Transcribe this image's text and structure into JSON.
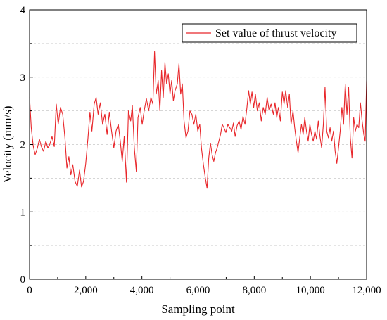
{
  "chart_data": {
    "type": "line",
    "xlabel": "Sampling point",
    "ylabel": "Velocity (mm/s)",
    "xlim": [
      0,
      12000
    ],
    "ylim": [
      0,
      4
    ],
    "x_ticks": [
      0,
      2000,
      4000,
      6000,
      8000,
      10000,
      12000
    ],
    "x_tick_labels": [
      "0",
      "2,000",
      "4,000",
      "6,000",
      "8,000",
      "10,000",
      "12,000"
    ],
    "y_ticks": [
      0,
      1,
      2,
      3,
      4
    ],
    "y_tick_labels": [
      "0",
      "1",
      "2",
      "3",
      "4"
    ],
    "grid": "horizontal dashed at 0.5 steps",
    "legend_position": "top-right",
    "series": [
      {
        "name": "Set value of thrust velocity",
        "color": "#e8262a",
        "points": [
          [
            0,
            2.7
          ],
          [
            60,
            2.25
          ],
          [
            130,
            1.98
          ],
          [
            200,
            1.85
          ],
          [
            280,
            1.95
          ],
          [
            350,
            2.08
          ],
          [
            420,
            1.97
          ],
          [
            500,
            1.9
          ],
          [
            580,
            2.05
          ],
          [
            650,
            1.95
          ],
          [
            720,
            2.0
          ],
          [
            800,
            2.12
          ],
          [
            880,
            1.97
          ],
          [
            950,
            2.6
          ],
          [
            1020,
            2.3
          ],
          [
            1100,
            2.55
          ],
          [
            1180,
            2.45
          ],
          [
            1260,
            2.1
          ],
          [
            1330,
            1.65
          ],
          [
            1400,
            1.82
          ],
          [
            1470,
            1.55
          ],
          [
            1540,
            1.7
          ],
          [
            1620,
            1.45
          ],
          [
            1700,
            1.38
          ],
          [
            1780,
            1.62
          ],
          [
            1850,
            1.37
          ],
          [
            1920,
            1.45
          ],
          [
            2000,
            1.72
          ],
          [
            2080,
            2.1
          ],
          [
            2150,
            2.48
          ],
          [
            2220,
            2.2
          ],
          [
            2300,
            2.6
          ],
          [
            2370,
            2.7
          ],
          [
            2440,
            2.45
          ],
          [
            2520,
            2.62
          ],
          [
            2600,
            2.3
          ],
          [
            2680,
            2.45
          ],
          [
            2760,
            2.15
          ],
          [
            2840,
            2.48
          ],
          [
            2920,
            2.2
          ],
          [
            3000,
            1.95
          ],
          [
            3080,
            2.2
          ],
          [
            3160,
            2.3
          ],
          [
            3230,
            2.05
          ],
          [
            3300,
            1.75
          ],
          [
            3370,
            2.12
          ],
          [
            3450,
            1.44
          ],
          [
            3520,
            2.5
          ],
          [
            3600,
            2.35
          ],
          [
            3660,
            2.58
          ],
          [
            3730,
            1.95
          ],
          [
            3800,
            1.6
          ],
          [
            3860,
            2.4
          ],
          [
            3940,
            2.55
          ],
          [
            4010,
            2.3
          ],
          [
            4080,
            2.5
          ],
          [
            4160,
            2.68
          ],
          [
            4240,
            2.5
          ],
          [
            4320,
            2.7
          ],
          [
            4390,
            2.6
          ],
          [
            4450,
            3.38
          ],
          [
            4510,
            2.75
          ],
          [
            4580,
            2.95
          ],
          [
            4640,
            2.5
          ],
          [
            4700,
            3.1
          ],
          [
            4760,
            2.7
          ],
          [
            4820,
            3.22
          ],
          [
            4880,
            2.9
          ],
          [
            4940,
            3.05
          ],
          [
            5000,
            2.75
          ],
          [
            5060,
            2.95
          ],
          [
            5120,
            2.65
          ],
          [
            5180,
            2.8
          ],
          [
            5260,
            2.9
          ],
          [
            5320,
            3.2
          ],
          [
            5380,
            2.75
          ],
          [
            5440,
            2.9
          ],
          [
            5500,
            2.35
          ],
          [
            5570,
            2.1
          ],
          [
            5640,
            2.2
          ],
          [
            5710,
            2.5
          ],
          [
            5780,
            2.45
          ],
          [
            5850,
            2.3
          ],
          [
            5920,
            2.45
          ],
          [
            5990,
            2.2
          ],
          [
            6060,
            2.3
          ],
          [
            6120,
            1.95
          ],
          [
            6190,
            1.7
          ],
          [
            6260,
            1.5
          ],
          [
            6320,
            1.35
          ],
          [
            6380,
            1.8
          ],
          [
            6440,
            2.02
          ],
          [
            6500,
            1.85
          ],
          [
            6560,
            1.75
          ],
          [
            6620,
            1.88
          ],
          [
            6680,
            1.95
          ],
          [
            6740,
            2.05
          ],
          [
            6800,
            2.15
          ],
          [
            6860,
            2.3
          ],
          [
            6920,
            2.25
          ],
          [
            6990,
            2.18
          ],
          [
            7060,
            2.3
          ],
          [
            7130,
            2.25
          ],
          [
            7200,
            2.2
          ],
          [
            7260,
            2.32
          ],
          [
            7320,
            2.12
          ],
          [
            7390,
            2.28
          ],
          [
            7460,
            2.35
          ],
          [
            7530,
            2.22
          ],
          [
            7600,
            2.42
          ],
          [
            7670,
            2.3
          ],
          [
            7740,
            2.55
          ],
          [
            7800,
            2.8
          ],
          [
            7860,
            2.6
          ],
          [
            7920,
            2.78
          ],
          [
            7980,
            2.55
          ],
          [
            8040,
            2.75
          ],
          [
            8110,
            2.5
          ],
          [
            8180,
            2.62
          ],
          [
            8250,
            2.35
          ],
          [
            8320,
            2.55
          ],
          [
            8390,
            2.45
          ],
          [
            8460,
            2.7
          ],
          [
            8530,
            2.5
          ],
          [
            8600,
            2.6
          ],
          [
            8680,
            2.45
          ],
          [
            8740,
            2.62
          ],
          [
            8800,
            2.4
          ],
          [
            8860,
            2.55
          ],
          [
            8930,
            2.35
          ],
          [
            9000,
            2.78
          ],
          [
            9060,
            2.6
          ],
          [
            9120,
            2.8
          ],
          [
            9190,
            2.55
          ],
          [
            9250,
            2.75
          ],
          [
            9310,
            2.3
          ],
          [
            9380,
            2.5
          ],
          [
            9440,
            2.25
          ],
          [
            9500,
            2.05
          ],
          [
            9560,
            1.88
          ],
          [
            9620,
            2.1
          ],
          [
            9680,
            2.3
          ],
          [
            9740,
            2.15
          ],
          [
            9800,
            2.4
          ],
          [
            9860,
            2.2
          ],
          [
            9920,
            2.05
          ],
          [
            9980,
            2.3
          ],
          [
            10040,
            2.15
          ],
          [
            10100,
            2.05
          ],
          [
            10160,
            2.2
          ],
          [
            10220,
            2.08
          ],
          [
            10280,
            2.35
          ],
          [
            10340,
            2.12
          ],
          [
            10400,
            1.95
          ],
          [
            10460,
            2.3
          ],
          [
            10520,
            2.85
          ],
          [
            10580,
            2.2
          ],
          [
            10640,
            2.1
          ],
          [
            10700,
            2.25
          ],
          [
            10760,
            2.05
          ],
          [
            10820,
            2.2
          ],
          [
            10880,
            1.9
          ],
          [
            10940,
            1.72
          ],
          [
            11000,
            1.95
          ],
          [
            11060,
            2.2
          ],
          [
            11120,
            2.55
          ],
          [
            11180,
            2.3
          ],
          [
            11240,
            2.9
          ],
          [
            11300,
            2.45
          ],
          [
            11360,
            2.85
          ],
          [
            11420,
            2.1
          ],
          [
            11480,
            1.8
          ],
          [
            11540,
            2.4
          ],
          [
            11600,
            2.2
          ],
          [
            11660,
            2.3
          ],
          [
            11720,
            2.25
          ],
          [
            11780,
            2.62
          ],
          [
            11840,
            2.35
          ],
          [
            11900,
            2.15
          ],
          [
            11950,
            2.05
          ],
          [
            12000,
            2.95
          ]
        ]
      }
    ]
  }
}
